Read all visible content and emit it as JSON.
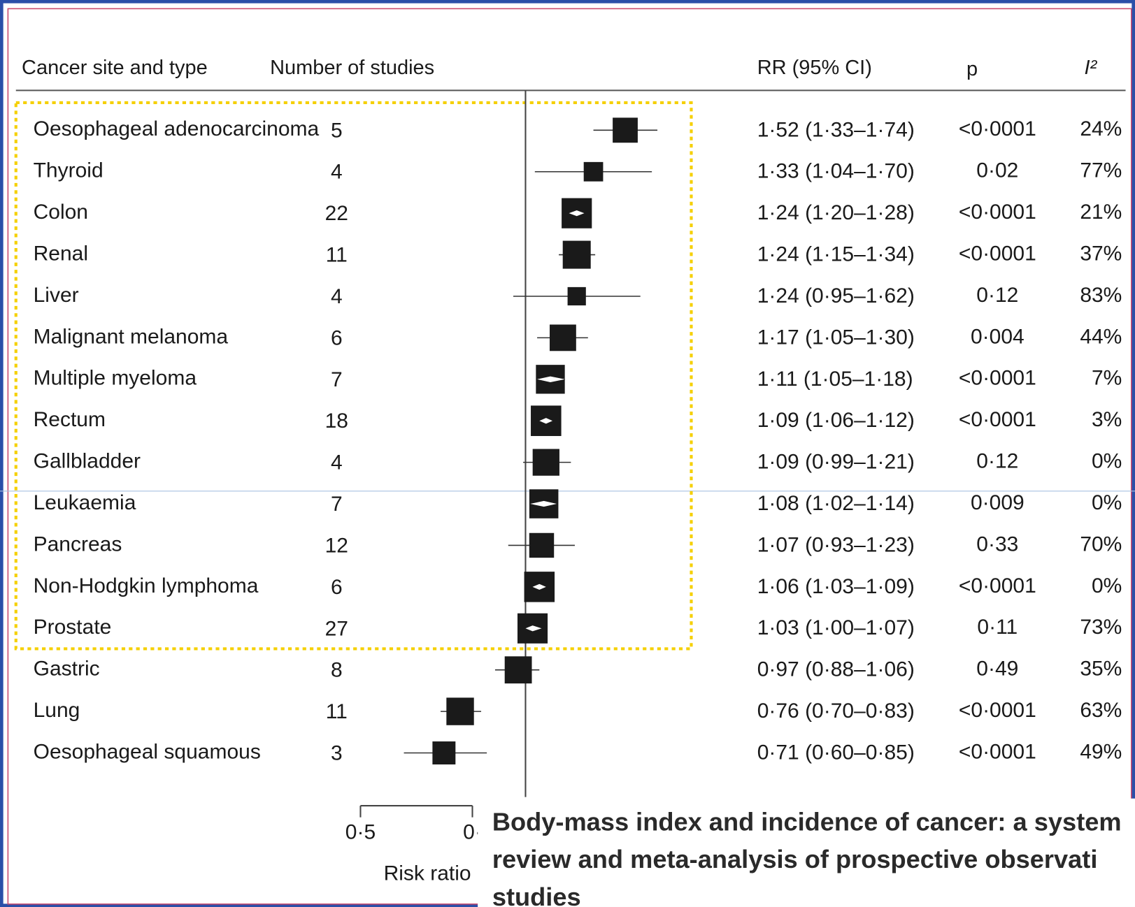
{
  "chart_data": {
    "type": "forest",
    "headers": {
      "site": "Cancer site and type",
      "studies": "Number of studies",
      "rr": "RR (95% CI)",
      "p": "p",
      "i2": "I²"
    },
    "categories": [
      "Oesophageal adenocarcinoma",
      "Thyroid",
      "Colon",
      "Renal",
      "Liver",
      "Malignant melanoma",
      "Multiple myeloma",
      "Rectum",
      "Gallbladder",
      "Leukaemia",
      "Pancreas",
      "Non-Hodgkin lymphoma",
      "Prostate",
      "Gastric",
      "Lung",
      "Oesophageal squamous"
    ],
    "studies": [
      5,
      4,
      22,
      11,
      4,
      6,
      7,
      18,
      4,
      7,
      12,
      6,
      27,
      8,
      11,
      3
    ],
    "values": [
      1.52,
      1.33,
      1.24,
      1.24,
      1.24,
      1.17,
      1.11,
      1.09,
      1.09,
      1.08,
      1.07,
      1.06,
      1.03,
      0.97,
      0.76,
      0.71
    ],
    "ci_low": [
      1.33,
      1.04,
      1.2,
      1.15,
      0.95,
      1.05,
      1.05,
      1.06,
      0.99,
      1.02,
      0.93,
      1.03,
      1.0,
      0.88,
      0.7,
      0.6
    ],
    "ci_high": [
      1.74,
      1.7,
      1.28,
      1.34,
      1.62,
      1.3,
      1.18,
      1.12,
      1.21,
      1.14,
      1.23,
      1.09,
      1.07,
      1.06,
      0.83,
      0.85
    ],
    "value_labels": [
      "1·52 (1·33–1·74)",
      "1·33 (1·04–1·70)",
      "1·24 (1·20–1·28)",
      "1·24 (1·15–1·34)",
      "1·24 (0·95–1·62)",
      "1·17 (1·05–1·30)",
      "1·11 (1·05–1·18)",
      "1·09 (1·06–1·12)",
      "1·09 (0·99–1·21)",
      "1·08 (1·02–1·14)",
      "1·07 (0·93–1·23)",
      "1·06 (1·03–1·09)",
      "1·03 (1·00–1·07)",
      "0·97 (0·88–1·06)",
      "0·76 (0·70–0·83)",
      "0·71 (0·60–0·85)"
    ],
    "p_values": [
      "<0·0001",
      "0·02",
      "<0·0001",
      "<0·0001",
      "0·12",
      "0·004",
      "<0·0001",
      "<0·0001",
      "0·12",
      "0·009",
      "0·33",
      "<0·0001",
      "0·11",
      "0·49",
      "<0·0001",
      "<0·0001"
    ],
    "i2": [
      "24%",
      "77%",
      "21%",
      "37%",
      "83%",
      "44%",
      "7%",
      "3%",
      "0%",
      "0%",
      "70%",
      "0%",
      "73%",
      "35%",
      "63%",
      "49%"
    ],
    "reference": 1,
    "xlim": [
      0.5,
      2
    ],
    "xticks": [
      {
        "value": 0.5,
        "label": "0·5"
      },
      {
        "value": 0.8,
        "label": "0·"
      }
    ],
    "log_x": true,
    "xlabel": "Risk ratio (",
    "title_lines": [
      "Body-mass index and incidence of cancer: a system",
      "review and meta-analysis of prospective observati",
      "studies"
    ],
    "color": "#1a1a1a"
  }
}
